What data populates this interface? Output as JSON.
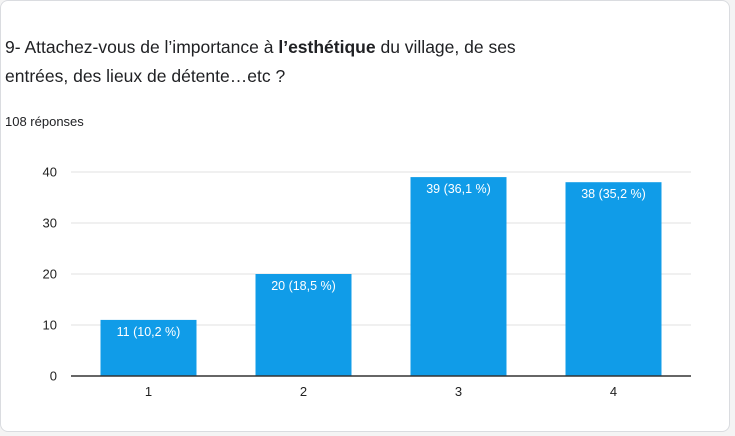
{
  "question": {
    "prefix": "9- Attachez-vous de l’importance à ",
    "emphasis": "l’esthétique",
    "suffix": " du village, de ses entrées, des lieux de détente…etc ?"
  },
  "responses_label": "108 réponses",
  "colors": {
    "bar": "#109ce8",
    "grid": "#e0e0e0",
    "axis": "#333333",
    "label_text": "#ffffff"
  },
  "chart_data": {
    "type": "bar",
    "categories": [
      "1",
      "2",
      "3",
      "4"
    ],
    "values": [
      11,
      20,
      39,
      38
    ],
    "data_labels": [
      "11 (10,2 %)",
      "20 (18,5 %)",
      "39 (36,1 %)",
      "38 (35,2 %)"
    ],
    "ylim": [
      0,
      40
    ],
    "yticks": [
      0,
      10,
      20,
      30,
      40
    ],
    "grid": true,
    "xlabel": "",
    "ylabel": ""
  }
}
